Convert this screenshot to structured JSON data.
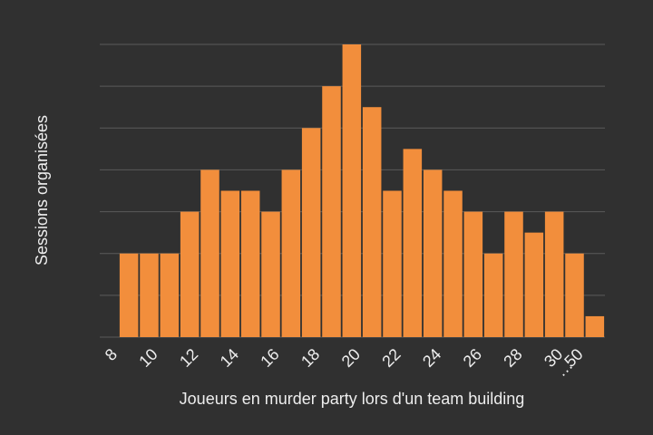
{
  "chart_data": {
    "type": "bar",
    "xlabel": "Joueurs en murder party lors d'un team building",
    "ylabel": "Sessions organisées",
    "categories": [
      "8",
      null,
      "10",
      null,
      "12",
      null,
      "14",
      null,
      "16",
      null,
      "18",
      null,
      "20",
      null,
      "22",
      null,
      "24",
      null,
      "26",
      null,
      "28",
      null,
      "30",
      "50"
    ],
    "values": [
      2,
      2,
      2,
      3,
      4,
      3.5,
      3.5,
      3,
      4,
      5,
      6,
      7,
      5.5,
      3.5,
      4.5,
      4,
      3.5,
      3,
      2,
      3,
      2.5,
      3,
      2,
      0.5
    ],
    "color": "#f28e3c",
    "annotation": "…",
    "ylim": [
      0,
      7
    ],
    "yticks": [
      0,
      1,
      2,
      3,
      4,
      5,
      6,
      7
    ],
    "grid": true
  }
}
